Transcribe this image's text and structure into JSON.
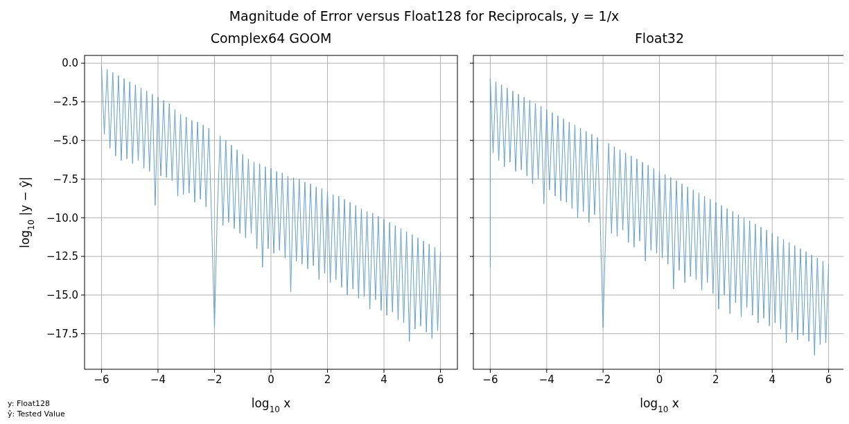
{
  "chart_data": [
    {
      "type": "other",
      "title": "Magnitude of Error versus Float128 for Reciprocals, y = 1/x",
      "annotations": [
        "y: Float128",
        "ŷ: Tested Value"
      ]
    },
    {
      "type": "line",
      "title": "Complex64 GOOM",
      "xlabel": "log$_{10}$ x",
      "ylabel": "log$_{10}$ |y − ŷ|",
      "xlim": [
        -6.6,
        6.6
      ],
      "ylim": [
        -19.8,
        0.5
      ],
      "xticks": [
        {
          "value": -6,
          "label": "−6"
        },
        {
          "value": -4,
          "label": "−4"
        },
        {
          "value": -2,
          "label": "−2"
        },
        0,
        2,
        4,
        6
      ],
      "yticks": [
        {
          "value": 0,
          "label": "0.0"
        },
        {
          "value": -2.5,
          "label": "−2.5"
        },
        {
          "value": -5,
          "label": "−5.0"
        },
        {
          "value": -7.5,
          "label": "−7.5"
        },
        {
          "value": -10,
          "label": "−10.0"
        },
        {
          "value": -12.5,
          "label": "−12.5"
        },
        {
          "value": -15,
          "label": "−15.0"
        },
        {
          "value": -17.5,
          "label": "−17.5"
        }
      ],
      "grid": true,
      "series": [
        {
          "color": "#619fca",
          "x": [
            -6,
            -5.9,
            -5.8,
            -5.7,
            -5.6,
            -5.5,
            -5.4,
            -5.3,
            -5.2,
            -5.1,
            -5,
            -4.9,
            -4.8,
            -4.7,
            -4.6,
            -4.5,
            -4.4,
            -4.3,
            -4.2,
            -4.1,
            -4,
            -3.9,
            -3.8,
            -3.7,
            -3.6,
            -3.5,
            -3.4,
            -3.3,
            -3.2,
            -3.1,
            -3,
            -2.9,
            -2.8,
            -2.7,
            -2.6,
            -2.5,
            -2.4,
            -2.3,
            -2.2,
            -2.1,
            -2,
            -1.9,
            -1.8,
            -1.7,
            -1.6,
            -1.5,
            -1.4,
            -1.3,
            -1.2,
            -1.1,
            -1,
            -0.9,
            -0.8,
            -0.7,
            -0.6,
            -0.5,
            -0.4,
            -0.3,
            -0.2,
            -0.1,
            0,
            0.1,
            0.2,
            0.3,
            0.4,
            0.5,
            0.6,
            0.7,
            0.8,
            0.9,
            1,
            1.1,
            1.2,
            1.3,
            1.4,
            1.5,
            1.6,
            1.7,
            1.8,
            1.9,
            2,
            2.1,
            2.2,
            2.3,
            2.4,
            2.5,
            2.6,
            2.7,
            2.8,
            2.9,
            3,
            3.1,
            3.2,
            3.3,
            3.4,
            3.5,
            3.6,
            3.7,
            3.8,
            3.9,
            4,
            4.1,
            4.2,
            4.3,
            4.4,
            4.5,
            4.6,
            4.7,
            4.8,
            4.9,
            5,
            5.1,
            5.2,
            5.3,
            5.4,
            5.5,
            5.6,
            5.7,
            5.8,
            5.9,
            6
          ],
          "values": [
            -0.2,
            -4.6,
            -0.4,
            -5.5,
            -0.6,
            -6.0,
            -0.8,
            -6.3,
            -1.0,
            -6.2,
            -1.2,
            -6.5,
            -1.4,
            -6.3,
            -1.6,
            -6.8,
            -1.8,
            -7.0,
            -2.0,
            -9.2,
            -2.2,
            -7.3,
            -2.4,
            -7.4,
            -2.6,
            -7.6,
            -3.0,
            -8.6,
            -3.3,
            -8.5,
            -3.5,
            -8.4,
            -3.7,
            -9.0,
            -3.8,
            -8.8,
            -4.0,
            -9.3,
            -4.2,
            -10.3,
            -17.1,
            -9.6,
            -4.7,
            -10.5,
            -5.0,
            -10.3,
            -5.3,
            -10.7,
            -5.6,
            -11.0,
            -5.9,
            -11.3,
            -6.2,
            -11.0,
            -6.4,
            -12.0,
            -6.5,
            -13.2,
            -6.7,
            -12.0,
            -6.8,
            -12.3,
            -7.0,
            -12.1,
            -7.1,
            -12.6,
            -7.3,
            -14.8,
            -7.4,
            -12.8,
            -7.5,
            -13.0,
            -7.7,
            -13.3,
            -7.8,
            -13.1,
            -8.0,
            -14.0,
            -8.1,
            -13.6,
            -8.3,
            -14.2,
            -8.5,
            -14.0,
            -8.6,
            -14.5,
            -8.8,
            -15.0,
            -9.0,
            -14.6,
            -9.2,
            -15.2,
            -9.4,
            -15.1,
            -9.6,
            -15.9,
            -9.7,
            -15.3,
            -9.9,
            -16.0,
            -10.1,
            -16.3,
            -10.3,
            -16.1,
            -10.5,
            -16.6,
            -10.7,
            -16.8,
            -10.9,
            -18.0,
            -11.1,
            -17.2,
            -11.3,
            -17.0,
            -11.5,
            -17.4,
            -11.7,
            -17.8,
            -11.9,
            -17.3,
            -12.2
          ]
        }
      ]
    },
    {
      "type": "line",
      "title": "Float32",
      "xlabel": "log$_{10}$ x",
      "xlim": [
        -6.6,
        6.6
      ],
      "ylim": [
        -19.8,
        0.5
      ],
      "xticks": [
        {
          "value": -6,
          "label": "−6"
        },
        {
          "value": -4,
          "label": "−4"
        },
        {
          "value": -2,
          "label": "−2"
        },
        0,
        2,
        4,
        6
      ],
      "yticks": [
        {
          "value": 0,
          "label": null
        },
        {
          "value": -2.5,
          "label": null
        },
        {
          "value": -5,
          "label": null
        },
        {
          "value": -7.5,
          "label": null
        },
        {
          "value": -10,
          "label": null
        },
        {
          "value": -12.5,
          "label": null
        },
        {
          "value": -15,
          "label": null
        },
        {
          "value": -17.5,
          "label": null
        }
      ],
      "grid": true,
      "tick_labels": "x",
      "series": [
        {
          "color": "#619fca",
          "x": [
            -6,
            -6,
            -5.9,
            -5.8,
            -5.7,
            -5.6,
            -5.5,
            -5.4,
            -5.3,
            -5.2,
            -5.1,
            -5,
            -4.9,
            -4.8,
            -4.7,
            -4.6,
            -4.5,
            -4.4,
            -4.3,
            -4.2,
            -4.1,
            -4,
            -3.9,
            -3.8,
            -3.7,
            -3.6,
            -3.5,
            -3.4,
            -3.3,
            -3.2,
            -3.1,
            -3,
            -2.9,
            -2.8,
            -2.7,
            -2.6,
            -2.5,
            -2.4,
            -2.3,
            -2.2,
            -2.1,
            -2,
            -1.9,
            -1.8,
            -1.7,
            -1.6,
            -1.5,
            -1.4,
            -1.3,
            -1.2,
            -1.1,
            -1,
            -0.9,
            -0.8,
            -0.7,
            -0.6,
            -0.5,
            -0.4,
            -0.3,
            -0.2,
            -0.1,
            0,
            0.1,
            0.2,
            0.3,
            0.4,
            0.5,
            0.6,
            0.7,
            0.8,
            0.9,
            1,
            1.1,
            1.2,
            1.3,
            1.4,
            1.5,
            1.6,
            1.7,
            1.8,
            1.9,
            2,
            2.1,
            2.2,
            2.3,
            2.4,
            2.5,
            2.6,
            2.7,
            2.8,
            2.9,
            3,
            3.1,
            3.2,
            3.3,
            3.4,
            3.5,
            3.6,
            3.7,
            3.8,
            3.9,
            4,
            4.1,
            4.2,
            4.3,
            4.4,
            4.5,
            4.6,
            4.7,
            4.8,
            4.9,
            5,
            5.1,
            5.2,
            5.3,
            5.4,
            5.5,
            5.6,
            5.7,
            5.8,
            5.9,
            6
          ],
          "values": [
            -13.2,
            -1.0,
            -5.8,
            -1.2,
            -6.3,
            -1.4,
            -6.7,
            -1.6,
            -6.4,
            -1.8,
            -7.0,
            -2.0,
            -6.9,
            -2.2,
            -7.3,
            -2.4,
            -7.8,
            -2.6,
            -7.5,
            -2.8,
            -9.1,
            -3.0,
            -8.2,
            -3.2,
            -8.6,
            -3.4,
            -8.9,
            -3.6,
            -9.0,
            -3.8,
            -9.4,
            -4.0,
            -10.0,
            -4.2,
            -9.6,
            -4.4,
            -10.3,
            -4.6,
            -9.8,
            -4.8,
            -10.2,
            -17.1,
            -10.4,
            -5.2,
            -11.0,
            -5.4,
            -11.2,
            -5.6,
            -10.8,
            -5.8,
            -11.6,
            -6.0,
            -11.9,
            -6.2,
            -11.5,
            -6.4,
            -12.8,
            -6.6,
            -12.1,
            -6.8,
            -12.3,
            -7.0,
            -12.6,
            -7.2,
            -13.0,
            -7.4,
            -14.6,
            -7.6,
            -13.4,
            -7.8,
            -14.2,
            -8.0,
            -13.8,
            -8.2,
            -14.0,
            -8.4,
            -14.7,
            -8.6,
            -14.2,
            -8.8,
            -14.9,
            -9.0,
            -15.9,
            -9.2,
            -15.0,
            -9.4,
            -16.2,
            -9.6,
            -15.5,
            -9.8,
            -16.4,
            -10.0,
            -15.8,
            -10.2,
            -16.3,
            -10.4,
            -16.8,
            -10.6,
            -16.5,
            -10.8,
            -17.0,
            -11.0,
            -16.8,
            -11.2,
            -17.2,
            -11.4,
            -18.1,
            -11.6,
            -17.4,
            -11.8,
            -17.9,
            -12.0,
            -17.6,
            -12.2,
            -18.0,
            -12.4,
            -18.9,
            -12.6,
            -18.2,
            -12.8,
            -18.1,
            -13.0
          ]
        }
      ]
    }
  ]
}
